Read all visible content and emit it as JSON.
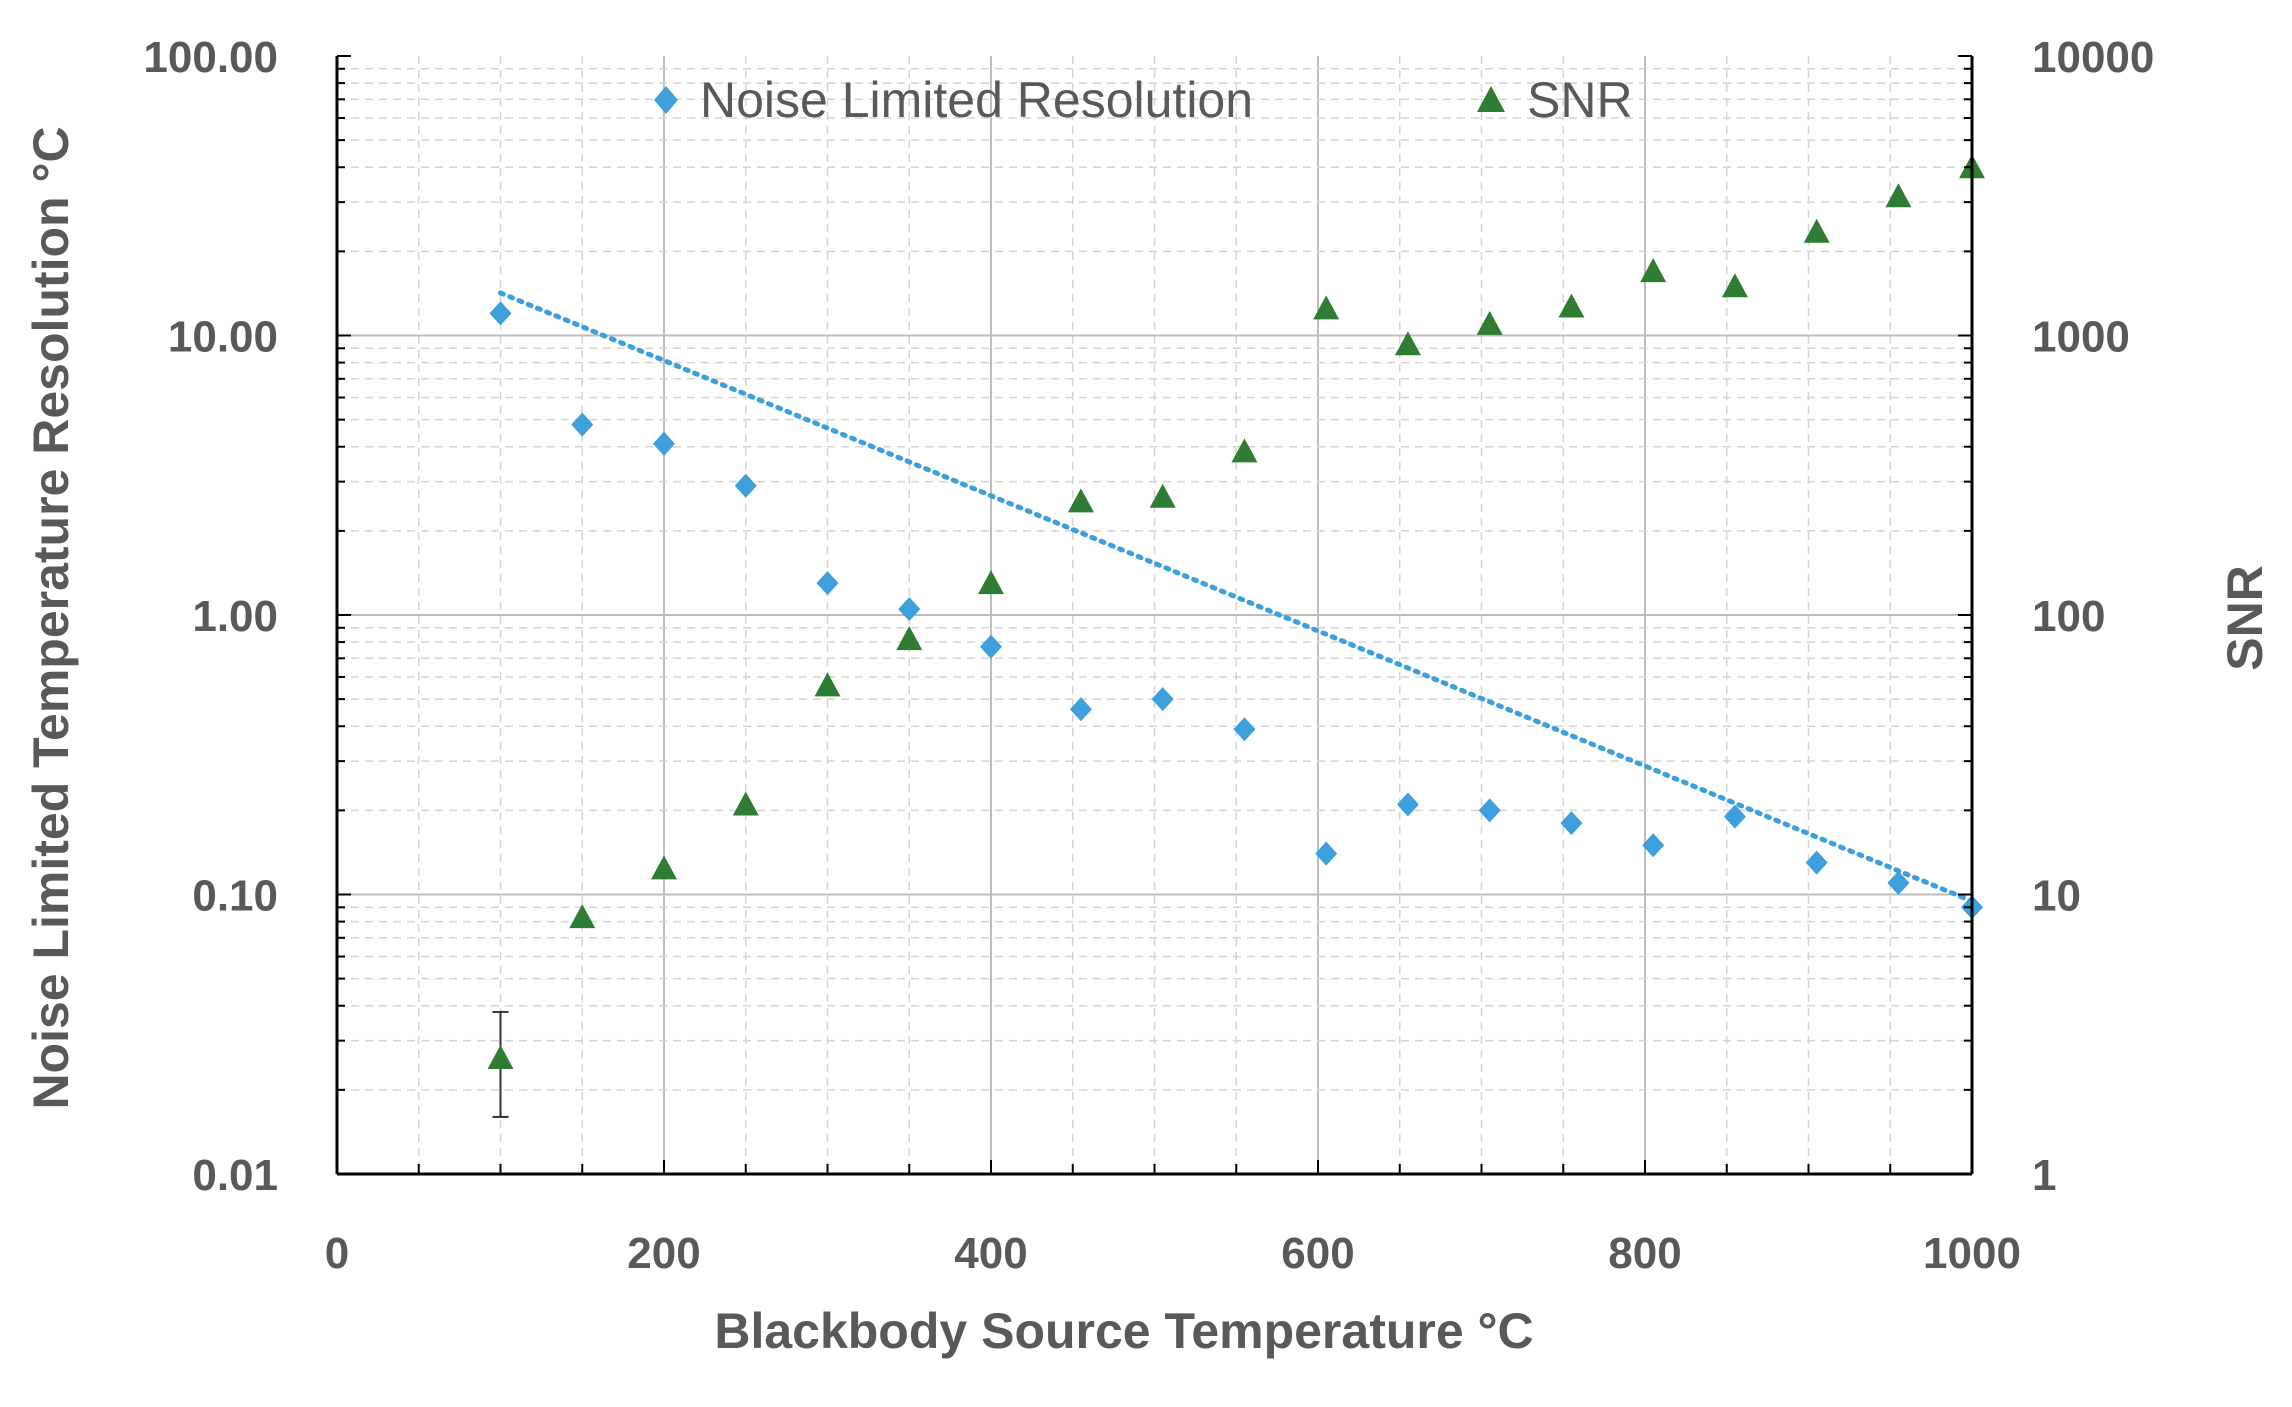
{
  "chart_data": {
    "type": "scatter",
    "title": "",
    "xlabel": "Blackbody Source Temperature °C",
    "ylabel_left": "Noise Limited Temperature Resolution °C",
    "ylabel_right": "SNR",
    "xlim": [
      0,
      1000
    ],
    "ylim_left": [
      0.01,
      100
    ],
    "ylim_right": [
      1,
      10000
    ],
    "yscale": "log",
    "grid": true,
    "legend_position": "top",
    "x_ticks": [
      "0",
      "200",
      "400",
      "600",
      "800",
      "1000"
    ],
    "y_left_ticks": [
      "0.01",
      "0.10",
      "1.00",
      "10.00",
      "100.00"
    ],
    "y_right_ticks": [
      "1",
      "10",
      "100",
      "1000",
      "10000"
    ],
    "series": [
      {
        "name": "Noise Limited Resolution",
        "axis": "left",
        "marker": "diamond",
        "color": "#3d9fdb",
        "x": [
          100,
          150,
          200,
          250,
          300,
          350,
          400,
          455,
          505,
          555,
          605,
          655,
          705,
          755,
          805,
          855,
          905,
          955,
          1000
        ],
        "y": [
          12.0,
          4.8,
          4.1,
          2.9,
          1.3,
          1.05,
          0.77,
          0.46,
          0.5,
          0.39,
          0.14,
          0.21,
          0.2,
          0.18,
          0.15,
          0.19,
          0.13,
          0.11,
          0.09
        ]
      },
      {
        "name": "SNR",
        "axis": "right",
        "marker": "triangle",
        "color": "#2e7d32",
        "x": [
          100,
          150,
          200,
          250,
          300,
          350,
          400,
          455,
          505,
          555,
          605,
          655,
          705,
          755,
          805,
          855,
          905,
          955,
          1000
        ],
        "y": [
          2.6,
          8.3,
          12.4,
          21.0,
          56.0,
          82.0,
          130.0,
          255.0,
          265.0,
          385.0,
          1250.0,
          930.0,
          1100.0,
          1270.0,
          1700.0,
          1500.0,
          2350.0,
          3150.0,
          4000.0
        ],
        "error_bar": {
          "x": 100,
          "low": 1.6,
          "high": 3.8
        }
      },
      {
        "name": "Trendline",
        "axis": "left",
        "style": "dotted",
        "color": "#3d9fdb",
        "equation": "y = 14.2 * exp(-0.005568 * (x - 100))"
      }
    ]
  }
}
